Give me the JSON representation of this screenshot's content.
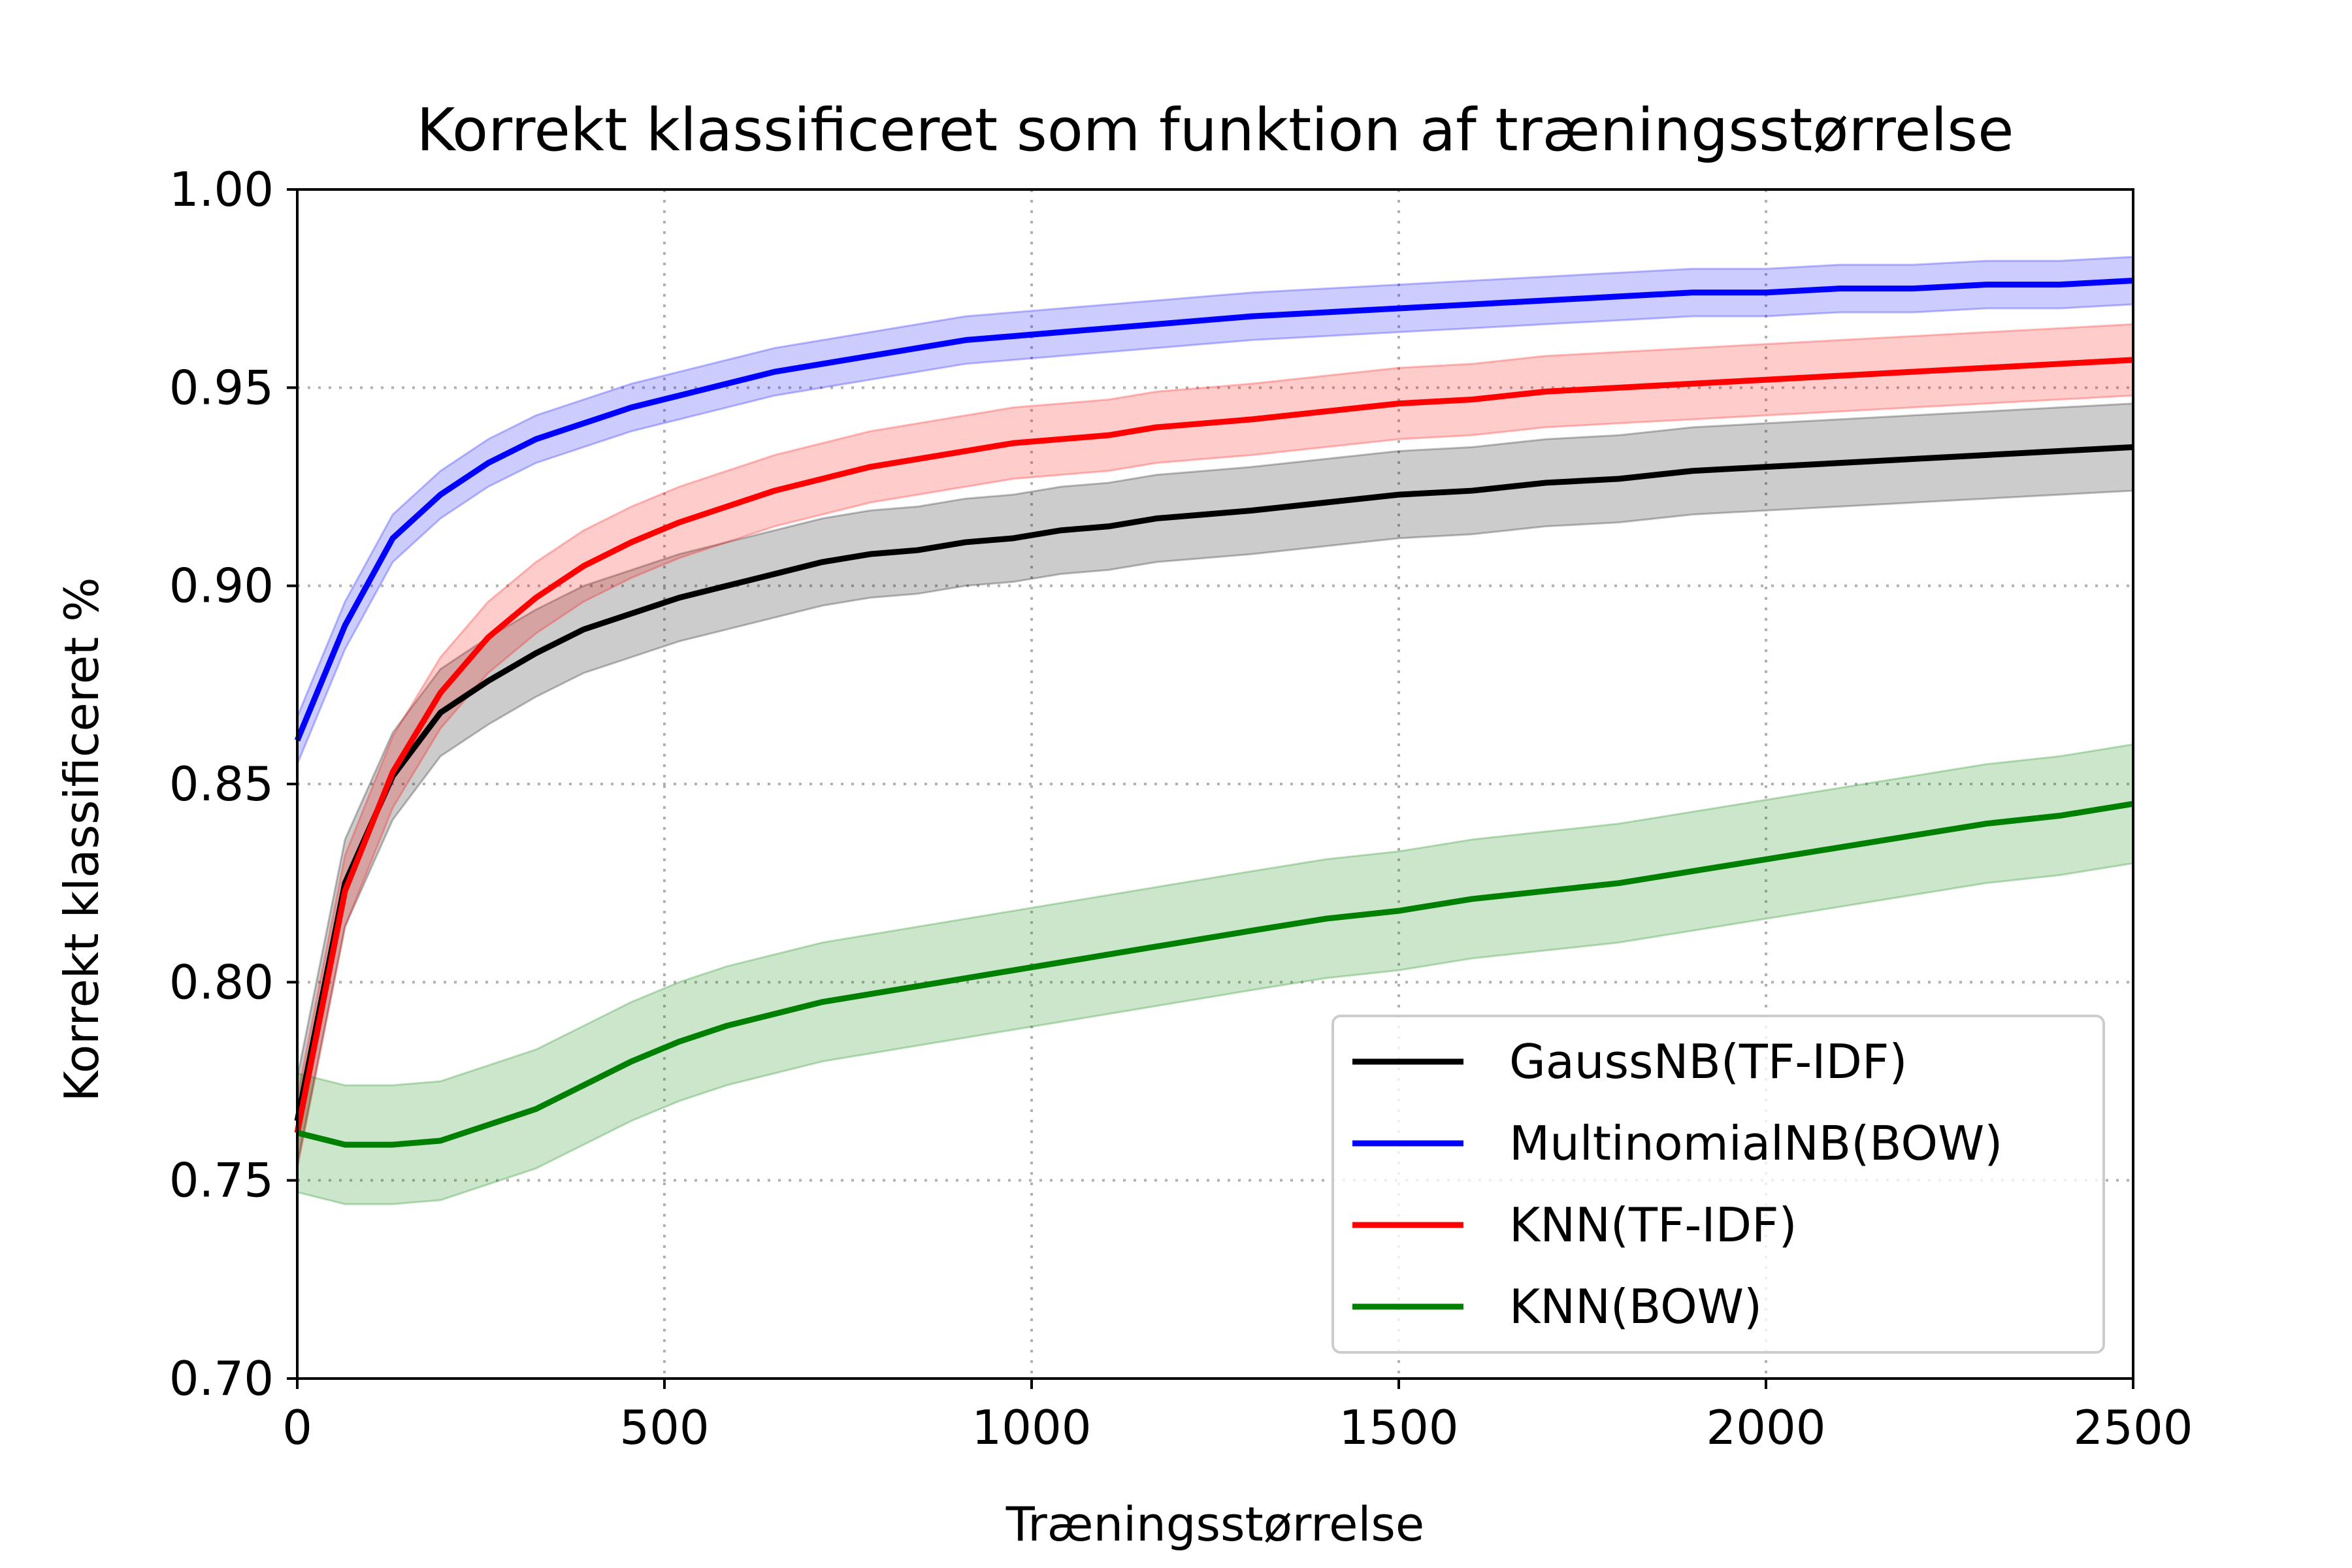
{
  "chart_data": {
    "type": "line",
    "title": "Korrekt klassificeret som funktion af træningsstørrelse",
    "xlabel": "Træningsstørrelse",
    "ylabel": "Korrekt klassificeret %",
    "xlim": [
      0,
      2500
    ],
    "ylim": [
      0.7,
      1.0
    ],
    "x_ticks": [
      0,
      500,
      1000,
      1500,
      2000,
      2500
    ],
    "y_ticks": [
      0.7,
      0.75,
      0.8,
      0.85,
      0.9,
      0.95,
      1.0
    ],
    "y_tick_labels": [
      "0.70",
      "0.75",
      "0.80",
      "0.85",
      "0.90",
      "0.95",
      "1.00"
    ],
    "grid": true,
    "legend_position": "lower-right",
    "series": [
      {
        "name": "GaussNB(TF-IDF)",
        "color": "#000000",
        "x": [
          0,
          65,
          130,
          195,
          260,
          325,
          390,
          455,
          520,
          585,
          650,
          715,
          780,
          845,
          910,
          975,
          1040,
          1105,
          1170,
          1235,
          1300,
          1400,
          1500,
          1600,
          1700,
          1800,
          1900,
          2000,
          2100,
          2200,
          2300,
          2400,
          2500
        ],
        "mean": [
          0.765,
          0.825,
          0.852,
          0.868,
          0.876,
          0.883,
          0.889,
          0.893,
          0.897,
          0.9,
          0.903,
          0.906,
          0.908,
          0.909,
          0.911,
          0.912,
          0.914,
          0.915,
          0.917,
          0.918,
          0.919,
          0.921,
          0.923,
          0.924,
          0.926,
          0.927,
          0.929,
          0.93,
          0.931,
          0.932,
          0.933,
          0.934,
          0.935
        ],
        "band": 0.011
      },
      {
        "name": "MultinomialNB(BOW)",
        "color": "#0000ff",
        "x": [
          0,
          65,
          130,
          195,
          260,
          325,
          390,
          455,
          520,
          585,
          650,
          715,
          780,
          845,
          910,
          975,
          1040,
          1105,
          1170,
          1235,
          1300,
          1400,
          1500,
          1600,
          1700,
          1800,
          1900,
          2000,
          2100,
          2200,
          2300,
          2400,
          2500
        ],
        "mean": [
          0.861,
          0.89,
          0.912,
          0.923,
          0.931,
          0.937,
          0.941,
          0.945,
          0.948,
          0.951,
          0.954,
          0.956,
          0.958,
          0.96,
          0.962,
          0.963,
          0.964,
          0.965,
          0.966,
          0.967,
          0.968,
          0.969,
          0.97,
          0.971,
          0.972,
          0.973,
          0.974,
          0.974,
          0.975,
          0.975,
          0.976,
          0.976,
          0.977
        ],
        "band": 0.006
      },
      {
        "name": "KNN(TF-IDF)",
        "color": "#ff0000",
        "x": [
          0,
          65,
          130,
          195,
          260,
          325,
          390,
          455,
          520,
          585,
          650,
          715,
          780,
          845,
          910,
          975,
          1040,
          1105,
          1170,
          1235,
          1300,
          1400,
          1500,
          1600,
          1700,
          1800,
          1900,
          2000,
          2100,
          2200,
          2300,
          2400,
          2500
        ],
        "mean": [
          0.762,
          0.823,
          0.853,
          0.873,
          0.887,
          0.897,
          0.905,
          0.911,
          0.916,
          0.92,
          0.924,
          0.927,
          0.93,
          0.932,
          0.934,
          0.936,
          0.937,
          0.938,
          0.94,
          0.941,
          0.942,
          0.944,
          0.946,
          0.947,
          0.949,
          0.95,
          0.951,
          0.952,
          0.953,
          0.954,
          0.955,
          0.956,
          0.957
        ],
        "band": 0.009
      },
      {
        "name": "KNN(BOW)",
        "color": "#008000",
        "x": [
          0,
          65,
          130,
          195,
          260,
          325,
          390,
          455,
          520,
          585,
          650,
          715,
          780,
          845,
          910,
          975,
          1040,
          1105,
          1170,
          1235,
          1300,
          1400,
          1500,
          1600,
          1700,
          1800,
          1900,
          2000,
          2100,
          2200,
          2300,
          2400,
          2500
        ],
        "mean": [
          0.762,
          0.759,
          0.759,
          0.76,
          0.764,
          0.768,
          0.774,
          0.78,
          0.785,
          0.789,
          0.792,
          0.795,
          0.797,
          0.799,
          0.801,
          0.803,
          0.805,
          0.807,
          0.809,
          0.811,
          0.813,
          0.816,
          0.818,
          0.821,
          0.823,
          0.825,
          0.828,
          0.831,
          0.834,
          0.837,
          0.84,
          0.842,
          0.845
        ],
        "band": 0.015
      }
    ]
  }
}
